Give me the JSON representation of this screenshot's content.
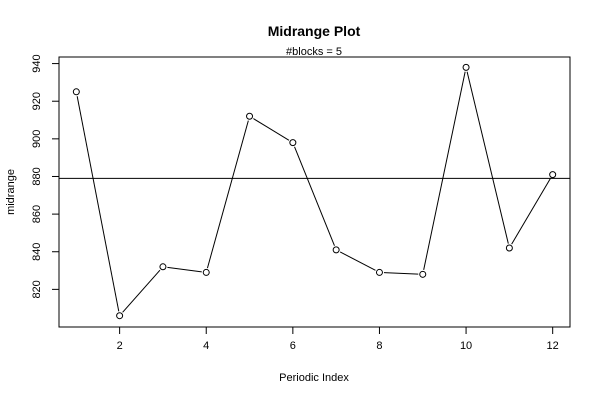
{
  "chart_data": {
    "type": "line",
    "title": "Midrange Plot",
    "subtitle": "#blocks =  5",
    "xlabel": "Periodic Index",
    "ylabel": "midrange",
    "x": [
      1,
      2,
      3,
      4,
      5,
      6,
      7,
      8,
      9,
      10,
      11,
      12
    ],
    "values": [
      925,
      806,
      832,
      829,
      912,
      898,
      841,
      829,
      828,
      938,
      842,
      881
    ],
    "reference_line": 879,
    "xlim": [
      0.6,
      12.4
    ],
    "ylim": [
      800,
      943.5
    ],
    "xticks": [
      2,
      4,
      6,
      8,
      10,
      12
    ],
    "yticks": [
      820,
      840,
      860,
      880,
      900,
      920,
      940
    ],
    "grid": false,
    "markers": "open-circle"
  }
}
